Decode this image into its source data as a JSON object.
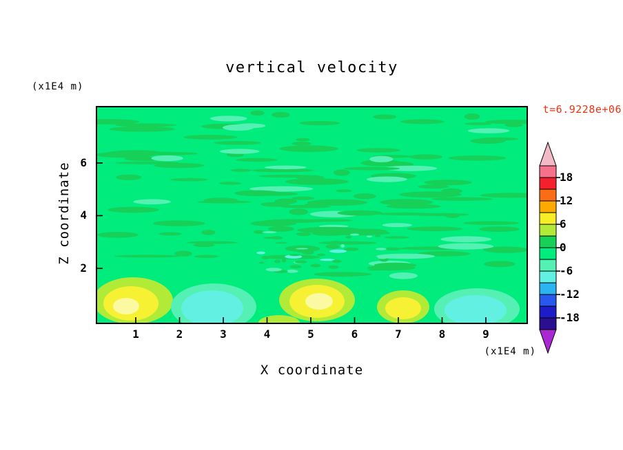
{
  "title": "vertical velocity",
  "timestamp": {
    "text": "t=6.9228e+06",
    "color": "#ee3211"
  },
  "axes": {
    "x": {
      "label": "X coordinate",
      "unit": "(x1E4 m)",
      "ticks": [
        1,
        2,
        3,
        4,
        5,
        6,
        7,
        8,
        9
      ]
    },
    "z": {
      "label": "Z coordinate",
      "unit": "(x1E4 m)",
      "ticks": [
        6,
        4,
        2
      ]
    }
  },
  "colorbar": {
    "labels": [
      "18",
      "12",
      "6",
      "0",
      "-6",
      "-12",
      "-18"
    ],
    "segment_colors": [
      "#f7708c",
      "#f5202e",
      "#fb6c14",
      "#ffaa00",
      "#f8ee28",
      "#b2ea38",
      "#17d058",
      "#00ec7d",
      "#54f0b4",
      "#62f0e2",
      "#2cb4f0",
      "#2858ee",
      "#1c1cc8",
      "#2a1090"
    ],
    "arrow_top_color": "#f2bac6",
    "arrow_bottom_color": "#aa28d2"
  },
  "palette": {
    "background": "#00ec7d",
    "green": "#17d058",
    "mint": "#54f0b4",
    "cyan": "#62f0e2",
    "yellow_green": "#b2ea38",
    "yellow": "#f6f233",
    "pale_yellow": "#fbf9a2"
  },
  "chart_data": {
    "type": "heatmap",
    "subtype": "filled-contour",
    "title": "vertical velocity",
    "xlabel": "X coordinate (x1E4 m)",
    "ylabel": "Z coordinate (x1E4 m)",
    "time_annotation": "t=6.9228e+06",
    "x_range": [
      0,
      9.8
    ],
    "z_range": [
      0,
      7.9
    ],
    "x_ticks": [
      1,
      2,
      3,
      4,
      5,
      6,
      7,
      8,
      9
    ],
    "z_ticks": [
      2,
      4,
      6
    ],
    "contour_levels": [
      -21,
      -18,
      -15,
      -12,
      -9,
      -6,
      -3,
      0,
      3,
      6,
      9,
      12,
      15,
      18,
      21
    ],
    "colorbar_labeled_levels": [
      18,
      12,
      6,
      0,
      -6,
      -12,
      -18
    ],
    "field_description": "Vertical velocity field: near-zero values (-3..0, spring green) fill most of the domain, textured with weak positive horizontal streaks (0..3, green) and occasional weak negative flecks; stronger extrema are confined below z≈1.5.",
    "features": [
      {
        "x": [
          0.3,
          1.7
        ],
        "z": [
          0,
          1.0
        ],
        "peak_level": 6,
        "sign": "updraft (yellow core)"
      },
      {
        "x": [
          2.2,
          3.4
        ],
        "z": [
          0,
          0.9
        ],
        "peak_level": -6,
        "sign": "downdraft (cyan)"
      },
      {
        "x": [
          4.4,
          5.7
        ],
        "z": [
          0,
          1.0
        ],
        "peak_level": 9,
        "sign": "updraft (pale yellow core)"
      },
      {
        "x": [
          6.7,
          7.4
        ],
        "z": [
          0,
          0.7
        ],
        "peak_level": 6,
        "sign": "updraft (yellow)"
      },
      {
        "x": [
          7.8,
          9.5
        ],
        "z": [
          0,
          0.8
        ],
        "peak_level": -6,
        "sign": "downdraft (cyan)"
      }
    ]
  }
}
